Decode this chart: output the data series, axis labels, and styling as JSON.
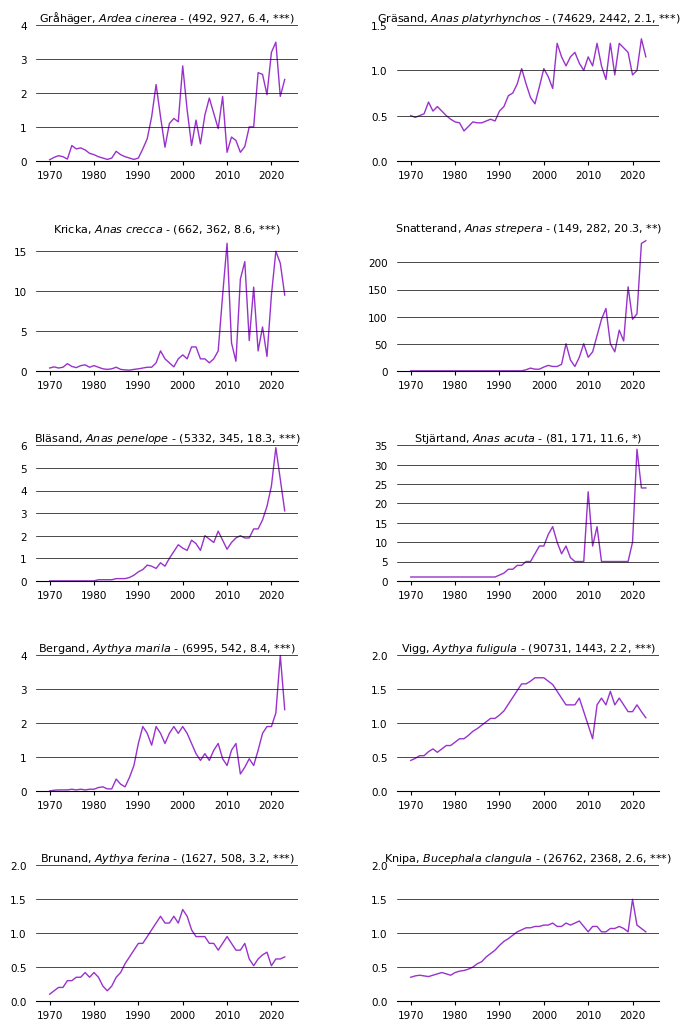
{
  "subplots": [
    {
      "title_normal": "Gråhäger, ",
      "title_italic": "Ardea cinerea",
      "title_suffix": " - (492, 927, 6.4, ***)",
      "years": [
        1970,
        1971,
        1972,
        1973,
        1974,
        1975,
        1976,
        1977,
        1978,
        1979,
        1980,
        1981,
        1982,
        1983,
        1984,
        1985,
        1986,
        1987,
        1988,
        1989,
        1990,
        1991,
        1992,
        1993,
        1994,
        1995,
        1996,
        1997,
        1998,
        1999,
        2000,
        2001,
        2002,
        2003,
        2004,
        2005,
        2006,
        2007,
        2008,
        2009,
        2010,
        2011,
        2012,
        2013,
        2014,
        2015,
        2016,
        2017,
        2018,
        2019,
        2020,
        2021,
        2022,
        2023
      ],
      "values": [
        0.03,
        0.1,
        0.15,
        0.12,
        0.05,
        0.45,
        0.35,
        0.38,
        0.32,
        0.22,
        0.18,
        0.12,
        0.08,
        0.04,
        0.08,
        0.28,
        0.18,
        0.12,
        0.08,
        0.04,
        0.08,
        0.35,
        0.65,
        1.3,
        2.25,
        1.3,
        0.4,
        1.1,
        1.25,
        1.15,
        2.8,
        1.5,
        0.45,
        1.2,
        0.5,
        1.35,
        1.85,
        1.4,
        0.95,
        1.9,
        0.25,
        0.7,
        0.6,
        0.25,
        0.42,
        1.0,
        1.0,
        2.6,
        2.55,
        1.95,
        3.2,
        3.5,
        1.9,
        2.4
      ],
      "ylim": [
        0,
        4
      ],
      "yticks": [
        0,
        1,
        2,
        3,
        4
      ]
    },
    {
      "title_normal": "Gräsand, ",
      "title_italic": "Anas platyrhynchos",
      "title_suffix": " - (74629, 2442, 2.1, ***)",
      "years": [
        1970,
        1971,
        1972,
        1973,
        1974,
        1975,
        1976,
        1977,
        1978,
        1979,
        1980,
        1981,
        1982,
        1983,
        1984,
        1985,
        1986,
        1987,
        1988,
        1989,
        1990,
        1991,
        1992,
        1993,
        1994,
        1995,
        1996,
        1997,
        1998,
        1999,
        2000,
        2001,
        2002,
        2003,
        2004,
        2005,
        2006,
        2007,
        2008,
        2009,
        2010,
        2011,
        2012,
        2013,
        2014,
        2015,
        2016,
        2017,
        2018,
        2019,
        2020,
        2021,
        2022,
        2023
      ],
      "values": [
        0.5,
        0.48,
        0.5,
        0.52,
        0.65,
        0.55,
        0.6,
        0.55,
        0.5,
        0.46,
        0.43,
        0.42,
        0.33,
        0.38,
        0.43,
        0.42,
        0.42,
        0.44,
        0.46,
        0.44,
        0.55,
        0.6,
        0.72,
        0.75,
        0.85,
        1.02,
        0.85,
        0.7,
        0.63,
        0.82,
        1.02,
        0.93,
        0.8,
        1.3,
        1.15,
        1.05,
        1.15,
        1.2,
        1.08,
        1.0,
        1.15,
        1.05,
        1.3,
        1.05,
        0.9,
        1.3,
        0.95,
        1.3,
        1.25,
        1.2,
        0.95,
        1.0,
        1.35,
        1.15
      ],
      "ylim": [
        0.0,
        1.5
      ],
      "yticks": [
        0.0,
        0.5,
        1.0,
        1.5
      ]
    },
    {
      "title_normal": "Kricka, ",
      "title_italic": "Anas crecca",
      "title_suffix": " - (662, 362, 8.6, ***)",
      "years": [
        1970,
        1971,
        1972,
        1973,
        1974,
        1975,
        1976,
        1977,
        1978,
        1979,
        1980,
        1981,
        1982,
        1983,
        1984,
        1985,
        1986,
        1987,
        1988,
        1989,
        1990,
        1991,
        1992,
        1993,
        1994,
        1995,
        1996,
        1997,
        1998,
        1999,
        2000,
        2001,
        2002,
        2003,
        2004,
        2005,
        2006,
        2007,
        2008,
        2009,
        2010,
        2011,
        2012,
        2013,
        2014,
        2015,
        2016,
        2017,
        2018,
        2019,
        2020,
        2021,
        2022,
        2023
      ],
      "values": [
        0.35,
        0.5,
        0.35,
        0.45,
        0.9,
        0.55,
        0.4,
        0.65,
        0.75,
        0.45,
        0.65,
        0.45,
        0.25,
        0.18,
        0.25,
        0.45,
        0.18,
        0.12,
        0.08,
        0.18,
        0.25,
        0.35,
        0.45,
        0.45,
        1.0,
        2.5,
        1.5,
        1.0,
        0.5,
        1.5,
        2.0,
        1.5,
        3.0,
        3.0,
        1.5,
        1.5,
        1.0,
        1.5,
        2.5,
        9.5,
        16.0,
        3.5,
        1.2,
        11.5,
        13.7,
        3.8,
        10.5,
        2.5,
        5.5,
        1.8,
        9.5,
        15.0,
        13.5,
        9.5
      ],
      "ylim": [
        0,
        17
      ],
      "yticks": [
        0,
        5,
        10,
        15
      ]
    },
    {
      "title_normal": "Snatterand, ",
      "title_italic": "Anas strepera",
      "title_suffix": " - (149, 282, 20.3, **)",
      "years": [
        1970,
        1971,
        1972,
        1973,
        1974,
        1975,
        1976,
        1977,
        1978,
        1979,
        1980,
        1981,
        1982,
        1983,
        1984,
        1985,
        1986,
        1987,
        1988,
        1989,
        1990,
        1991,
        1992,
        1993,
        1994,
        1995,
        1996,
        1997,
        1998,
        1999,
        2000,
        2001,
        2002,
        2003,
        2004,
        2005,
        2006,
        2007,
        2008,
        2009,
        2010,
        2011,
        2012,
        2013,
        2014,
        2015,
        2016,
        2017,
        2018,
        2019,
        2020,
        2021,
        2022,
        2023
      ],
      "values": [
        0,
        0,
        0,
        0,
        0,
        0,
        0,
        0,
        0,
        0,
        0,
        0,
        0,
        0,
        0,
        0,
        0,
        0,
        0,
        0,
        0,
        0,
        0,
        0,
        0,
        0,
        2,
        5,
        3,
        3,
        7,
        10,
        8,
        8,
        12,
        50,
        20,
        8,
        25,
        50,
        25,
        35,
        65,
        95,
        115,
        50,
        35,
        75,
        55,
        155,
        95,
        105,
        235,
        240
      ],
      "ylim": [
        0,
        250
      ],
      "yticks": [
        0,
        50,
        100,
        150,
        200
      ]
    },
    {
      "title_normal": "Bläsand, ",
      "title_italic": "Anas penelope",
      "title_suffix": " - (5332, 345, 18.3, ***)",
      "years": [
        1970,
        1971,
        1972,
        1973,
        1974,
        1975,
        1976,
        1977,
        1978,
        1979,
        1980,
        1981,
        1982,
        1983,
        1984,
        1985,
        1986,
        1987,
        1988,
        1989,
        1990,
        1991,
        1992,
        1993,
        1994,
        1995,
        1996,
        1997,
        1998,
        1999,
        2000,
        2001,
        2002,
        2003,
        2004,
        2005,
        2006,
        2007,
        2008,
        2009,
        2010,
        2011,
        2012,
        2013,
        2014,
        2015,
        2016,
        2017,
        2018,
        2019,
        2020,
        2021,
        2022,
        2023
      ],
      "values": [
        0.0,
        0.0,
        0.0,
        0.0,
        0.0,
        0.0,
        0.0,
        0.0,
        0.0,
        0.0,
        0.0,
        0.05,
        0.05,
        0.05,
        0.05,
        0.1,
        0.1,
        0.1,
        0.15,
        0.25,
        0.4,
        0.5,
        0.7,
        0.65,
        0.55,
        0.8,
        0.65,
        1.0,
        1.3,
        1.6,
        1.45,
        1.35,
        1.8,
        1.65,
        1.35,
        2.0,
        1.85,
        1.7,
        2.2,
        1.8,
        1.4,
        1.7,
        1.9,
        2.0,
        1.9,
        1.9,
        2.3,
        2.3,
        2.7,
        3.3,
        4.2,
        5.9,
        4.5,
        3.1
      ],
      "ylim": [
        0,
        6
      ],
      "yticks": [
        0,
        1,
        2,
        3,
        4,
        5,
        6
      ]
    },
    {
      "title_normal": "Stjärtand, ",
      "title_italic": "Anas acuta",
      "title_suffix": " - (81, 171, 11.6, *)",
      "years": [
        1970,
        1971,
        1972,
        1973,
        1974,
        1975,
        1976,
        1977,
        1978,
        1979,
        1980,
        1981,
        1982,
        1983,
        1984,
        1985,
        1986,
        1987,
        1988,
        1989,
        1990,
        1991,
        1992,
        1993,
        1994,
        1995,
        1996,
        1997,
        1998,
        1999,
        2000,
        2001,
        2002,
        2003,
        2004,
        2005,
        2006,
        2007,
        2008,
        2009,
        2010,
        2011,
        2012,
        2013,
        2014,
        2015,
        2016,
        2017,
        2018,
        2019,
        2020,
        2021,
        2022,
        2023
      ],
      "values": [
        1,
        1,
        1,
        1,
        1,
        1,
        1,
        1,
        1,
        1,
        1,
        1,
        1,
        1,
        1,
        1,
        1,
        1,
        1,
        1,
        1.5,
        2,
        3,
        3,
        4,
        4,
        5,
        5,
        7,
        9,
        9,
        12,
        14,
        10,
        7,
        9,
        6,
        5,
        5,
        5,
        23,
        9,
        14,
        5,
        5,
        5,
        5,
        5,
        5,
        5,
        10,
        34,
        24,
        24
      ],
      "ylim": [
        0,
        35
      ],
      "yticks": [
        0,
        5,
        10,
        15,
        20,
        25,
        30,
        35
      ]
    },
    {
      "title_normal": "Bergand, ",
      "title_italic": "Aythya marila",
      "title_suffix": " - (6995, 542, 8.4, ***)",
      "years": [
        1970,
        1971,
        1972,
        1973,
        1974,
        1975,
        1976,
        1977,
        1978,
        1979,
        1980,
        1981,
        1982,
        1983,
        1984,
        1985,
        1986,
        1987,
        1988,
        1989,
        1990,
        1991,
        1992,
        1993,
        1994,
        1995,
        1996,
        1997,
        1998,
        1999,
        2000,
        2001,
        2002,
        2003,
        2004,
        2005,
        2006,
        2007,
        2008,
        2009,
        2010,
        2011,
        2012,
        2013,
        2014,
        2015,
        2016,
        2017,
        2018,
        2019,
        2020,
        2021,
        2022,
        2023
      ],
      "values": [
        0.0,
        0.02,
        0.03,
        0.03,
        0.03,
        0.05,
        0.03,
        0.05,
        0.03,
        0.05,
        0.05,
        0.1,
        0.12,
        0.06,
        0.06,
        0.35,
        0.2,
        0.12,
        0.4,
        0.75,
        1.4,
        1.9,
        1.7,
        1.35,
        1.9,
        1.7,
        1.4,
        1.7,
        1.9,
        1.7,
        1.9,
        1.7,
        1.4,
        1.1,
        0.9,
        1.1,
        0.9,
        1.2,
        1.4,
        0.95,
        0.75,
        1.2,
        1.4,
        0.5,
        0.7,
        0.95,
        0.75,
        1.2,
        1.7,
        1.9,
        1.9,
        2.3,
        4.0,
        2.4
      ],
      "ylim": [
        0,
        4
      ],
      "yticks": [
        0,
        1,
        2,
        3,
        4
      ]
    },
    {
      "title_normal": "Vigg, ",
      "title_italic": "Aythya fuligula",
      "title_suffix": " - (90731, 1443, 2.2, ***)",
      "years": [
        1970,
        1971,
        1972,
        1973,
        1974,
        1975,
        1976,
        1977,
        1978,
        1979,
        1980,
        1981,
        1982,
        1983,
        1984,
        1985,
        1986,
        1987,
        1988,
        1989,
        1990,
        1991,
        1992,
        1993,
        1994,
        1995,
        1996,
        1997,
        1998,
        1999,
        2000,
        2001,
        2002,
        2003,
        2004,
        2005,
        2006,
        2007,
        2008,
        2009,
        2010,
        2011,
        2012,
        2013,
        2014,
        2015,
        2016,
        2017,
        2018,
        2019,
        2020,
        2021,
        2022,
        2023
      ],
      "values": [
        0.45,
        0.48,
        0.52,
        0.52,
        0.58,
        0.62,
        0.57,
        0.62,
        0.67,
        0.67,
        0.72,
        0.77,
        0.77,
        0.82,
        0.88,
        0.92,
        0.97,
        1.02,
        1.07,
        1.07,
        1.12,
        1.18,
        1.28,
        1.38,
        1.48,
        1.58,
        1.58,
        1.62,
        1.67,
        1.67,
        1.67,
        1.62,
        1.57,
        1.47,
        1.37,
        1.27,
        1.27,
        1.27,
        1.37,
        1.17,
        0.97,
        0.77,
        1.27,
        1.37,
        1.27,
        1.47,
        1.27,
        1.37,
        1.27,
        1.17,
        1.17,
        1.27,
        1.17,
        1.08
      ],
      "ylim": [
        0.0,
        2.0
      ],
      "yticks": [
        0.0,
        0.5,
        1.0,
        1.5,
        2.0
      ]
    },
    {
      "title_normal": "Brunand, ",
      "title_italic": "Aythya ferina",
      "title_suffix": " - (1627, 508, 3.2, ***)",
      "years": [
        1970,
        1971,
        1972,
        1973,
        1974,
        1975,
        1976,
        1977,
        1978,
        1979,
        1980,
        1981,
        1982,
        1983,
        1984,
        1985,
        1986,
        1987,
        1988,
        1989,
        1990,
        1991,
        1992,
        1993,
        1994,
        1995,
        1996,
        1997,
        1998,
        1999,
        2000,
        2001,
        2002,
        2003,
        2004,
        2005,
        2006,
        2007,
        2008,
        2009,
        2010,
        2011,
        2012,
        2013,
        2014,
        2015,
        2016,
        2017,
        2018,
        2019,
        2020,
        2021,
        2022,
        2023
      ],
      "values": [
        0.1,
        0.15,
        0.2,
        0.2,
        0.3,
        0.3,
        0.35,
        0.35,
        0.42,
        0.35,
        0.42,
        0.35,
        0.22,
        0.15,
        0.22,
        0.35,
        0.42,
        0.55,
        0.65,
        0.75,
        0.85,
        0.85,
        0.95,
        1.05,
        1.15,
        1.25,
        1.15,
        1.15,
        1.25,
        1.15,
        1.35,
        1.25,
        1.05,
        0.95,
        0.95,
        0.95,
        0.85,
        0.85,
        0.75,
        0.85,
        0.95,
        0.85,
        0.75,
        0.75,
        0.85,
        0.62,
        0.52,
        0.62,
        0.68,
        0.72,
        0.52,
        0.62,
        0.62,
        0.65
      ],
      "ylim": [
        0.0,
        2.0
      ],
      "yticks": [
        0.0,
        0.5,
        1.0,
        1.5,
        2.0
      ]
    },
    {
      "title_normal": "Knipa, ",
      "title_italic": "Bucephala clangula",
      "title_suffix": " - (26762, 2368, 2.6, ***)",
      "years": [
        1970,
        1971,
        1972,
        1973,
        1974,
        1975,
        1976,
        1977,
        1978,
        1979,
        1980,
        1981,
        1982,
        1983,
        1984,
        1985,
        1986,
        1987,
        1988,
        1989,
        1990,
        1991,
        1992,
        1993,
        1994,
        1995,
        1996,
        1997,
        1998,
        1999,
        2000,
        2001,
        2002,
        2003,
        2004,
        2005,
        2006,
        2007,
        2008,
        2009,
        2010,
        2011,
        2012,
        2013,
        2014,
        2015,
        2016,
        2017,
        2018,
        2019,
        2020,
        2021,
        2022,
        2023
      ],
      "values": [
        0.35,
        0.37,
        0.38,
        0.37,
        0.36,
        0.38,
        0.4,
        0.42,
        0.4,
        0.38,
        0.42,
        0.44,
        0.45,
        0.47,
        0.5,
        0.55,
        0.58,
        0.65,
        0.7,
        0.75,
        0.82,
        0.88,
        0.92,
        0.97,
        1.02,
        1.05,
        1.08,
        1.08,
        1.1,
        1.1,
        1.12,
        1.12,
        1.15,
        1.1,
        1.1,
        1.15,
        1.12,
        1.15,
        1.18,
        1.1,
        1.02,
        1.1,
        1.1,
        1.02,
        1.02,
        1.07,
        1.07,
        1.1,
        1.07,
        1.02,
        1.5,
        1.12,
        1.07,
        1.02
      ],
      "ylim": [
        0.0,
        2.0
      ],
      "yticks": [
        0.0,
        0.5,
        1.0,
        1.5,
        2.0
      ]
    }
  ],
  "line_color": "#9932CC",
  "line_width": 1.0,
  "background_color": "#ffffff",
  "tick_label_size": 7.5,
  "title_fontsize": 8.0,
  "xlim_left": 1967,
  "xlim_right": 2026
}
